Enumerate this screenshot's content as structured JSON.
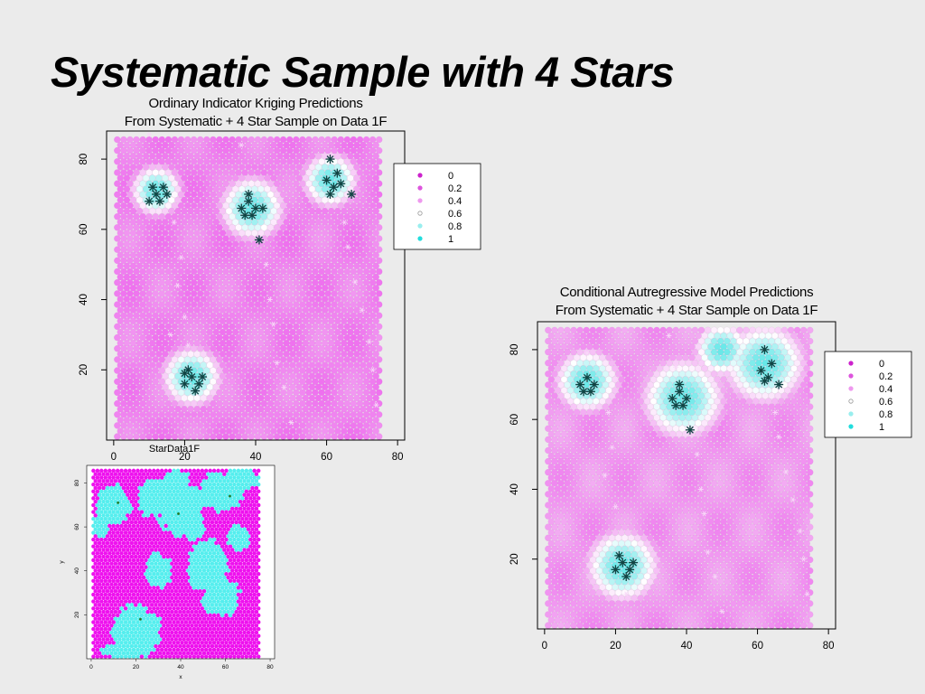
{
  "slide": {
    "title": "Systematic Sample with 4 Stars"
  },
  "chart_data": [
    {
      "id": "kriging",
      "type": "scatter",
      "title_lines": [
        "Ordinary Indicator Kriging Predictions",
        "From Systematic + 4 Star Sample on Data 1F"
      ],
      "xlabel": "",
      "ylabel": "",
      "xlim": [
        -2,
        82
      ],
      "ylim": [
        0,
        88
      ],
      "x_ticks": [
        0,
        20,
        40,
        60,
        80
      ],
      "y_ticks": [
        20,
        40,
        60,
        80
      ],
      "grid": false,
      "legend": {
        "placement": "right",
        "entries": [
          {
            "label": "0",
            "color": "#cc22cc"
          },
          {
            "label": "0.2",
            "color": "#dd55dd"
          },
          {
            "label": "0.4",
            "color": "#ee99ee"
          },
          {
            "label": "0.6",
            "color": "#999999"
          },
          {
            "label": "0.8",
            "color": "#99eeee"
          },
          {
            "label": "1",
            "color": "#22dddd"
          }
        ]
      },
      "color_scale": [
        "#ee66ee",
        "#f2a8f2",
        "#ffffff",
        "#66e8e8"
      ],
      "field": {
        "x_range": [
          1,
          75
        ],
        "y_range": [
          1,
          87
        ],
        "spacing": 1.8,
        "base": 0.15,
        "blobs": [
          {
            "x": 12,
            "y": 71,
            "r": 5.5
          },
          {
            "x": 39,
            "y": 66,
            "r": 7
          },
          {
            "x": 61,
            "y": 74,
            "r": 6
          },
          {
            "x": 22,
            "y": 18,
            "r": 6.5
          }
        ]
      },
      "stars": [
        {
          "x": 10,
          "y": 68
        },
        {
          "x": 12,
          "y": 70
        },
        {
          "x": 14,
          "y": 72
        },
        {
          "x": 11,
          "y": 72
        },
        {
          "x": 13,
          "y": 68
        },
        {
          "x": 15,
          "y": 70
        },
        {
          "x": 36,
          "y": 66
        },
        {
          "x": 38,
          "y": 68
        },
        {
          "x": 40,
          "y": 66
        },
        {
          "x": 37,
          "y": 64
        },
        {
          "x": 39,
          "y": 64
        },
        {
          "x": 38,
          "y": 70
        },
        {
          "x": 42,
          "y": 66
        },
        {
          "x": 41,
          "y": 57
        },
        {
          "x": 61,
          "y": 80
        },
        {
          "x": 60,
          "y": 74
        },
        {
          "x": 62,
          "y": 72
        },
        {
          "x": 63,
          "y": 76
        },
        {
          "x": 64,
          "y": 73
        },
        {
          "x": 61,
          "y": 70
        },
        {
          "x": 67,
          "y": 70
        },
        {
          "x": 20,
          "y": 16
        },
        {
          "x": 22,
          "y": 18
        },
        {
          "x": 24,
          "y": 16
        },
        {
          "x": 21,
          "y": 20
        },
        {
          "x": 23,
          "y": 14
        },
        {
          "x": 25,
          "y": 18
        },
        {
          "x": 20,
          "y": 19
        }
      ],
      "sample_points": [
        {
          "x": 10,
          "y": 87
        },
        {
          "x": 36,
          "y": 84
        },
        {
          "x": 17,
          "y": 62
        },
        {
          "x": 19,
          "y": 52
        },
        {
          "x": 18,
          "y": 44
        },
        {
          "x": 20,
          "y": 35
        },
        {
          "x": 21,
          "y": 27
        },
        {
          "x": 43,
          "y": 50
        },
        {
          "x": 44,
          "y": 40
        },
        {
          "x": 45,
          "y": 33
        },
        {
          "x": 46,
          "y": 22
        },
        {
          "x": 48,
          "y": 15
        },
        {
          "x": 50,
          "y": 5
        },
        {
          "x": 65,
          "y": 62
        },
        {
          "x": 66,
          "y": 55
        },
        {
          "x": 68,
          "y": 45
        },
        {
          "x": 70,
          "y": 37
        },
        {
          "x": 72,
          "y": 28
        },
        {
          "x": 73,
          "y": 20
        },
        {
          "x": 74,
          "y": 10
        },
        {
          "x": 16,
          "y": 30
        }
      ]
    },
    {
      "id": "car",
      "type": "scatter",
      "title_lines": [
        "Conditional Autregressive Model Predictions",
        "From Systematic + 4 Star Sample on Data 1F"
      ],
      "xlabel": "",
      "ylabel": "",
      "xlim": [
        -2,
        82
      ],
      "ylim": [
        0,
        88
      ],
      "x_ticks": [
        0,
        20,
        40,
        60,
        80
      ],
      "y_ticks": [
        20,
        40,
        60,
        80
      ],
      "grid": false,
      "legend": {
        "placement": "right",
        "entries": [
          {
            "label": "0",
            "color": "#cc22cc"
          },
          {
            "label": "0.2",
            "color": "#dd55dd"
          },
          {
            "label": "0.4",
            "color": "#ee99ee"
          },
          {
            "label": "0.6",
            "color": "#999999"
          },
          {
            "label": "0.8",
            "color": "#99eeee"
          },
          {
            "label": "1",
            "color": "#22dddd"
          }
        ]
      },
      "color_scale": [
        "#ee66ee",
        "#f2a8f2",
        "#ffffff",
        "#66e8e8"
      ],
      "field": {
        "x_range": [
          1,
          75
        ],
        "y_range": [
          1,
          87
        ],
        "spacing": 1.8,
        "base": 0.25,
        "blobs": [
          {
            "x": 12,
            "y": 71,
            "r": 7
          },
          {
            "x": 39,
            "y": 66,
            "r": 9
          },
          {
            "x": 62,
            "y": 76,
            "r": 9
          },
          {
            "x": 22,
            "y": 18,
            "r": 8
          },
          {
            "x": 50,
            "y": 80,
            "r": 6
          }
        ]
      },
      "stars": [
        {
          "x": 10,
          "y": 70
        },
        {
          "x": 12,
          "y": 72
        },
        {
          "x": 14,
          "y": 70
        },
        {
          "x": 11,
          "y": 68
        },
        {
          "x": 13,
          "y": 68
        },
        {
          "x": 36,
          "y": 66
        },
        {
          "x": 38,
          "y": 68
        },
        {
          "x": 40,
          "y": 66
        },
        {
          "x": 37,
          "y": 64
        },
        {
          "x": 39,
          "y": 64
        },
        {
          "x": 38,
          "y": 70
        },
        {
          "x": 41,
          "y": 57
        },
        {
          "x": 62,
          "y": 80
        },
        {
          "x": 61,
          "y": 74
        },
        {
          "x": 63,
          "y": 72
        },
        {
          "x": 64,
          "y": 76
        },
        {
          "x": 62,
          "y": 71
        },
        {
          "x": 66,
          "y": 70
        },
        {
          "x": 20,
          "y": 17
        },
        {
          "x": 22,
          "y": 19
        },
        {
          "x": 24,
          "y": 17
        },
        {
          "x": 21,
          "y": 21
        },
        {
          "x": 23,
          "y": 15
        },
        {
          "x": 25,
          "y": 19
        }
      ],
      "sample_points": [
        {
          "x": 12,
          "y": 79
        },
        {
          "x": 35,
          "y": 84
        },
        {
          "x": 37,
          "y": 75
        },
        {
          "x": 18,
          "y": 62
        },
        {
          "x": 19,
          "y": 52
        },
        {
          "x": 17,
          "y": 44
        },
        {
          "x": 20,
          "y": 35
        },
        {
          "x": 43,
          "y": 50
        },
        {
          "x": 44,
          "y": 40
        },
        {
          "x": 45,
          "y": 33
        },
        {
          "x": 46,
          "y": 22
        },
        {
          "x": 48,
          "y": 15
        },
        {
          "x": 50,
          "y": 5
        },
        {
          "x": 65,
          "y": 62
        },
        {
          "x": 66,
          "y": 55
        },
        {
          "x": 68,
          "y": 45
        },
        {
          "x": 70,
          "y": 37
        },
        {
          "x": 72,
          "y": 28
        },
        {
          "x": 73,
          "y": 20
        },
        {
          "x": 74,
          "y": 10
        },
        {
          "x": 23,
          "y": 10
        }
      ]
    },
    {
      "id": "stardata",
      "type": "scatter",
      "title_lines": [
        "StarData1F"
      ],
      "xlabel": "x",
      "ylabel": "y",
      "xlim": [
        -2,
        82
      ],
      "ylim": [
        0,
        88
      ],
      "x_ticks": [
        0,
        20,
        40,
        60,
        80
      ],
      "y_ticks": [
        20,
        40,
        60,
        80
      ],
      "grid": false,
      "colors": {
        "background": "#ee11ee",
        "cover": "#55eeee"
      },
      "field": {
        "x_range": [
          1,
          75
        ],
        "y_range": [
          1,
          87
        ],
        "spacing": 1.8,
        "patches": [
          {
            "x": 10,
            "y": 70,
            "rx": 8,
            "ry": 9
          },
          {
            "x": 28,
            "y": 73,
            "rx": 7,
            "ry": 9
          },
          {
            "x": 40,
            "y": 68,
            "rx": 10,
            "ry": 12
          },
          {
            "x": 38,
            "y": 80,
            "rx": 6,
            "ry": 6
          },
          {
            "x": 58,
            "y": 76,
            "rx": 10,
            "ry": 9
          },
          {
            "x": 68,
            "y": 82,
            "rx": 7,
            "ry": 5
          },
          {
            "x": 30,
            "y": 40,
            "rx": 6,
            "ry": 8
          },
          {
            "x": 52,
            "y": 42,
            "rx": 9,
            "ry": 12
          },
          {
            "x": 58,
            "y": 28,
            "rx": 8,
            "ry": 9
          },
          {
            "x": 20,
            "y": 12,
            "rx": 11,
            "ry": 12
          },
          {
            "x": 14,
            "y": 4,
            "rx": 10,
            "ry": 4
          },
          {
            "x": 66,
            "y": 55,
            "rx": 5,
            "ry": 6
          },
          {
            "x": 46,
            "y": 58,
            "rx": 5,
            "ry": 4
          },
          {
            "x": 4,
            "y": 60,
            "rx": 4,
            "ry": 5
          }
        ]
      },
      "stars": [
        {
          "x": 12,
          "y": 71
        },
        {
          "x": 39,
          "y": 66
        },
        {
          "x": 62,
          "y": 74
        },
        {
          "x": 22,
          "y": 18
        }
      ]
    }
  ]
}
